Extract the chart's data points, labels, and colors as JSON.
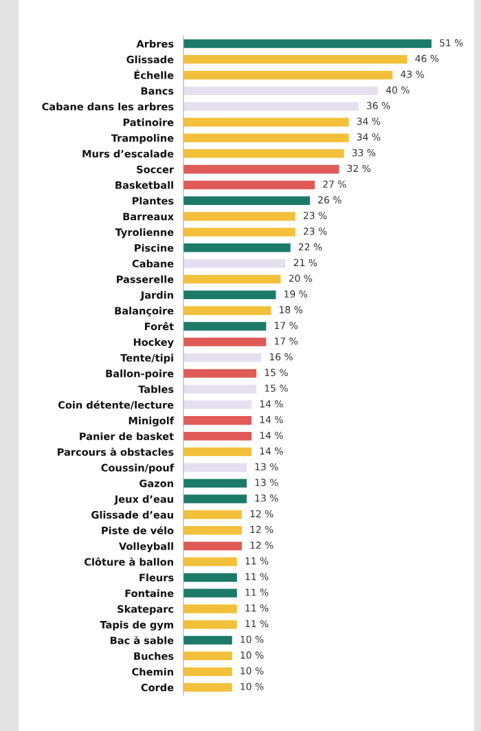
{
  "chart_data": {
    "type": "bar",
    "orientation": "horizontal",
    "categories": [
      "Arbres",
      "Glissade",
      "Échelle",
      "Bancs",
      "Cabane dans les arbres",
      "Patinoire",
      "Trampoline",
      "Murs d’escalade",
      "Soccer",
      "Basketball",
      "Plantes",
      "Barreaux",
      "Tyrolienne",
      "Piscine",
      "Cabane",
      "Passerelle",
      "Jardin",
      "Balançoire",
      "Forêt",
      "Hockey",
      "Tente/tipi",
      "Ballon-poire",
      "Tables",
      "Coin détente/lecture",
      "Minigolf",
      "Panier de basket",
      "Parcours à obstacles",
      "Coussin/pouf",
      "Gazon",
      "Jeux d’eau",
      "Glissade d’eau",
      "Piste de vélo",
      "Volleyball",
      "Clôture à ballon",
      "Fleurs",
      "Fontaine",
      "Skateparc",
      "Tapis de gym",
      "Bac à sable",
      "Buches",
      "Chemin",
      "Corde"
    ],
    "values": [
      51,
      46,
      43,
      40,
      36,
      34,
      34,
      33,
      32,
      27,
      26,
      23,
      23,
      22,
      21,
      20,
      19,
      18,
      17,
      17,
      16,
      15,
      15,
      14,
      14,
      14,
      14,
      13,
      13,
      13,
      12,
      12,
      12,
      11,
      11,
      11,
      11,
      11,
      10,
      10,
      10,
      10
    ],
    "colors": [
      "#1b7a68",
      "#f2c03b",
      "#f2c03b",
      "#e6dff0",
      "#e6dff0",
      "#f2c03b",
      "#f2c03b",
      "#f2c03b",
      "#e05a57",
      "#e05a57",
      "#1b7a68",
      "#f2c03b",
      "#f2c03b",
      "#1b7a68",
      "#e6dff0",
      "#f2c03b",
      "#1b7a68",
      "#f2c03b",
      "#1b7a68",
      "#e05a57",
      "#e6dff0",
      "#e05a57",
      "#e6dff0",
      "#e6dff0",
      "#e05a57",
      "#e05a57",
      "#f2c03b",
      "#e6dff0",
      "#1b7a68",
      "#1b7a68",
      "#f2c03b",
      "#f2c03b",
      "#e05a57",
      "#f2c03b",
      "#1b7a68",
      "#1b7a68",
      "#f2c03b",
      "#f2c03b",
      "#1b7a68",
      "#f2c03b",
      "#f2c03b",
      "#f2c03b"
    ],
    "value_labels": [
      "51 %",
      "46 %",
      "43 %",
      "40 %",
      "36 %",
      "34 %",
      "34 %",
      "33 %",
      "32 %",
      "27 %",
      "26 %",
      "23 %",
      "23 %",
      "22 %",
      "21 %",
      "20 %",
      "19 %",
      "18 %",
      "17 %",
      "17 %",
      "16 %",
      "15 %",
      "15 %",
      "14 %",
      "14 %",
      "14 %",
      "14 %",
      "13 %",
      "13 %",
      "13 %",
      "12 %",
      "12 %",
      "12 %",
      "11 %",
      "11 %",
      "11 %",
      "11 %",
      "11 %",
      "10 %",
      "10 %",
      "10 %",
      "10 %"
    ],
    "grid": false,
    "legend": false
  }
}
